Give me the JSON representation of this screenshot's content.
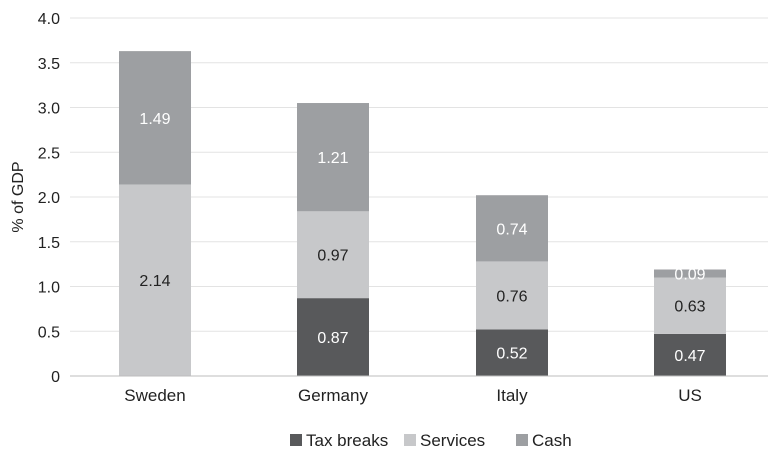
{
  "chart_data": {
    "type": "bar",
    "stacked": true,
    "categories": [
      "Sweden",
      "Germany",
      "Italy",
      "US"
    ],
    "series": [
      {
        "name": "Tax breaks",
        "values": [
          null,
          0.87,
          0.52,
          0.47
        ],
        "color": "#58595b",
        "label_color": "#ffffff"
      },
      {
        "name": "Services",
        "values": [
          2.14,
          0.97,
          0.76,
          0.63
        ],
        "color": "#c7c8ca",
        "label_color": "#222222"
      },
      {
        "name": "Cash",
        "values": [
          1.49,
          1.21,
          0.74,
          0.09
        ],
        "color": "#9d9fa2",
        "label_color": "#ffffff"
      }
    ],
    "data_labels": [
      [
        null,
        "0.87",
        "0.52",
        "0.47"
      ],
      [
        "2.14",
        "0.97",
        "0.76",
        "0.63"
      ],
      [
        "1.49",
        "1.21",
        "0.74",
        "0.09"
      ]
    ],
    "ylabel": "% of GDP",
    "ylim": [
      0,
      4.0
    ],
    "yticks": [
      0,
      0.5,
      1.0,
      1.5,
      2.0,
      2.5,
      3.0,
      3.5,
      4.0
    ],
    "ytick_labels": [
      "0",
      "0.5",
      "1.0",
      "1.5",
      "2.0",
      "2.5",
      "3.0",
      "3.5",
      "4.0"
    ],
    "grid": true,
    "legend_position": "bottom-center"
  }
}
